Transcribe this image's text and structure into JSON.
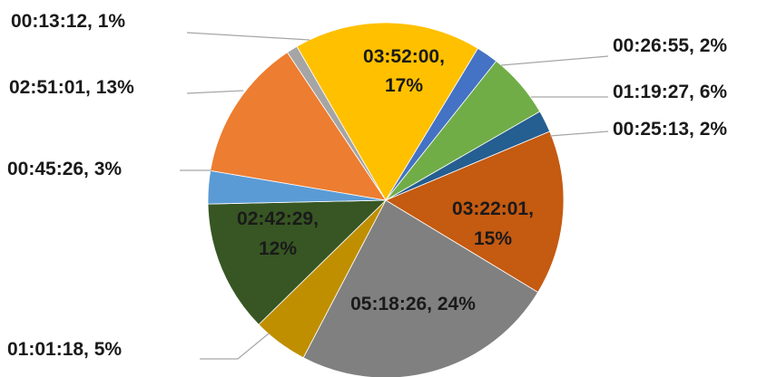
{
  "chart_data": {
    "type": "pie",
    "title": "",
    "slices": [
      {
        "label": "03:52:00, 17%",
        "value": 17,
        "color": "#FFC000"
      },
      {
        "label": "00:26:55, 2%",
        "value": 2,
        "color": "#4472C4"
      },
      {
        "label": "01:19:27, 6%",
        "value": 6,
        "color": "#70AD47"
      },
      {
        "label": "00:25:13, 2%",
        "value": 2,
        "color": "#255E91"
      },
      {
        "label": "03:22:01, 15%",
        "value": 15,
        "color": "#C55A11"
      },
      {
        "label": "05:18:26, 24%",
        "value": 24,
        "color": "#808080"
      },
      {
        "label": "01:01:18, 5%",
        "value": 5,
        "color": "#BF8F00"
      },
      {
        "label": "02:42:29, 12%",
        "value": 12,
        "color": "#375623"
      },
      {
        "label": "00:45:26, 3%",
        "value": 3,
        "color": "#5B9BD5"
      },
      {
        "label": "02:51:01, 13%",
        "value": 13,
        "color": "#ED7D31"
      },
      {
        "label": "00:13:12, 1%",
        "value": 1,
        "color": "#A5A5A5"
      }
    ]
  }
}
